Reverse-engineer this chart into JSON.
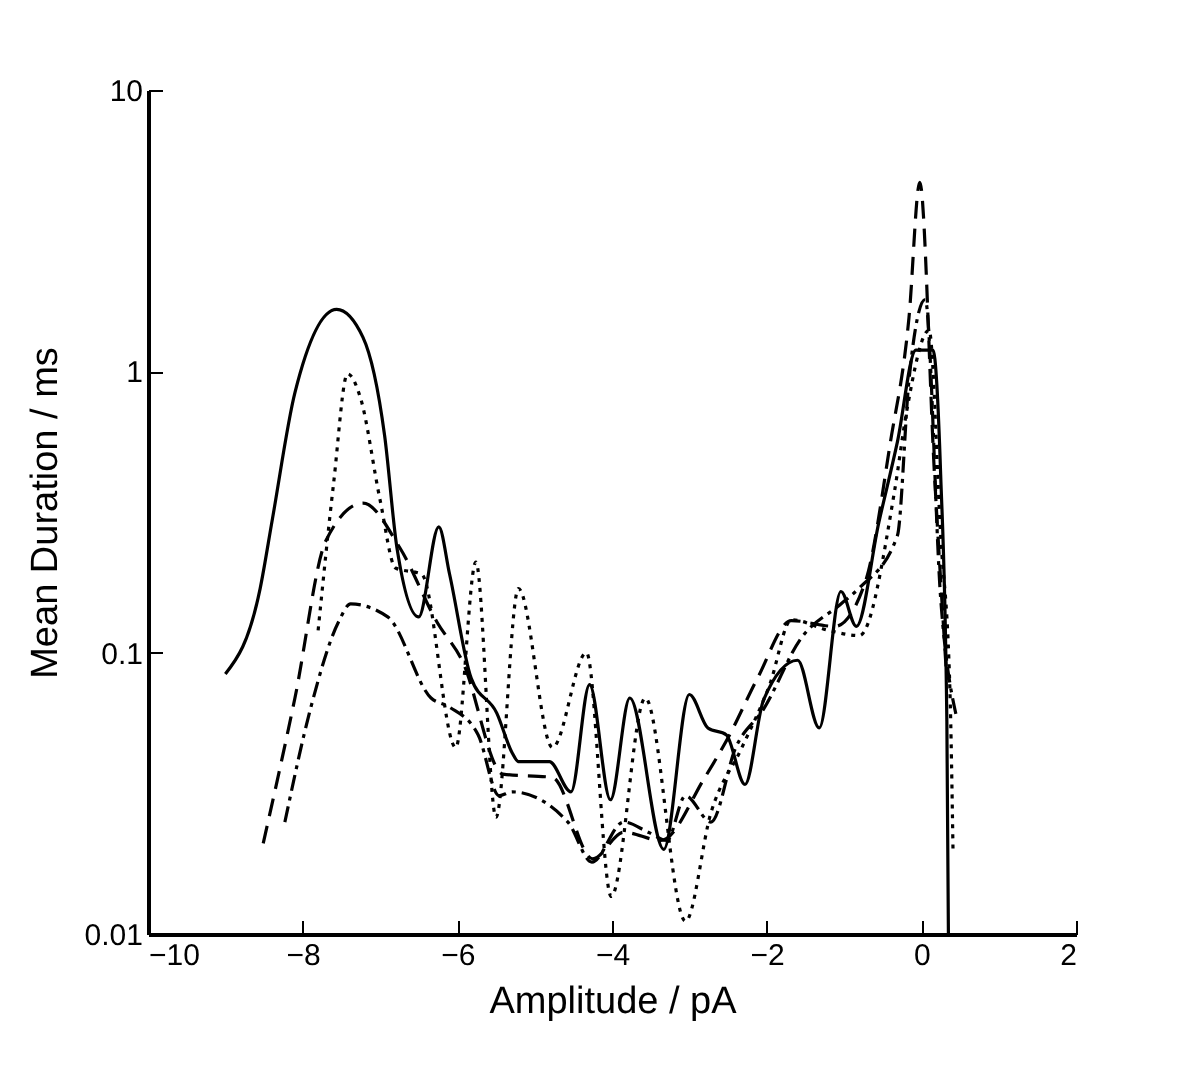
{
  "chart_data": {
    "type": "line",
    "xlabel": "Amplitude / pA",
    "ylabel": "Mean Duration / ms",
    "log": "y",
    "xlim": [
      -10,
      2
    ],
    "xticks": [
      -10,
      -8,
      -6,
      -4,
      -2,
      0,
      2
    ],
    "ylim": [
      0.01,
      10
    ],
    "yticks": [
      0.01,
      0.1,
      1,
      10
    ],
    "grid": false,
    "marker": "none",
    "series": [
      {
        "color": "#000000",
        "line_style": "solid",
        "x": [
          -9.0,
          -8.55,
          -8.39,
          -8.1,
          -7.56,
          -7.22,
          -6.94,
          -6.78,
          -6.5,
          -6.24,
          -6.1,
          -5.82,
          -5.49,
          -5.29,
          -5.21,
          -4.81,
          -4.53,
          -4.29,
          -4.02,
          -3.77,
          -3.33,
          -3.0,
          -2.76,
          -2.52,
          -2.28,
          -2.04,
          -1.6,
          -1.32,
          -1.04,
          -0.84,
          -0.55,
          -0.31,
          -0.07,
          0.15,
          0.25,
          0.33,
          0.35
        ],
        "values": [
          0.084,
          0.169,
          0.3,
          0.84,
          1.66,
          1.32,
          0.59,
          0.235,
          0.134,
          0.28,
          0.19,
          0.081,
          0.061,
          0.044,
          0.041,
          0.041,
          0.032,
          0.077,
          0.03,
          0.069,
          0.02,
          0.071,
          0.054,
          0.051,
          0.034,
          0.068,
          0.094,
          0.054,
          0.165,
          0.124,
          0.29,
          0.56,
          1.19,
          1.19,
          0.43,
          0.057,
          0.01
        ]
      },
      {
        "color": "#000000",
        "line_style": "dotted",
        "x": [
          -7.8,
          -7.6,
          -7.42,
          -7.25,
          -7.0,
          -6.8,
          -6.46,
          -6.02,
          -5.76,
          -5.5,
          -5.21,
          -4.77,
          -4.33,
          -4.01,
          -3.57,
          -3.05,
          -2.72,
          -2.32,
          -1.96,
          -1.68,
          -1.2,
          -0.8,
          -0.35,
          -0.19,
          0.1,
          0.25,
          0.37,
          0.41
        ],
        "values": [
          0.12,
          0.4,
          0.98,
          0.8,
          0.35,
          0.2,
          0.19,
          0.046,
          0.21,
          0.026,
          0.169,
          0.046,
          0.1,
          0.0136,
          0.069,
          0.0111,
          0.027,
          0.046,
          0.077,
          0.131,
          0.12,
          0.115,
          0.37,
          0.72,
          1.4,
          0.26,
          0.073,
          0.0195
        ]
      },
      {
        "color": "#000000",
        "line_style": "dashed",
        "x": [
          -8.51,
          -8.1,
          -7.7,
          -7.22,
          -6.74,
          -6.26,
          -5.94,
          -5.41,
          -4.77,
          -4.25,
          -3.85,
          -3.37,
          -2.8,
          -2.48,
          -2.12,
          -1.68,
          -1.12,
          -0.72,
          -0.4,
          -0.16,
          -0.02,
          0.17,
          0.33
        ],
        "values": [
          0.021,
          0.069,
          0.25,
          0.34,
          0.235,
          0.128,
          0.094,
          0.037,
          0.036,
          0.0185,
          0.023,
          0.0215,
          0.036,
          0.051,
          0.081,
          0.13,
          0.124,
          0.18,
          0.56,
          1.55,
          4.7,
          0.43,
          0.08
        ]
      },
      {
        "color": "#000000",
        "line_style": "dashdot",
        "x": [
          -8.23,
          -7.9,
          -7.54,
          -7.38,
          -6.9,
          -6.34,
          -6.1,
          -5.73,
          -5.46,
          -5.29,
          -4.57,
          -4.26,
          -3.85,
          -3.53,
          -3.29,
          -3.05,
          -2.72,
          -2.4,
          -2.04,
          -1.56,
          -1.04,
          -0.8,
          -0.31,
          -0.16,
          0.05,
          0.25,
          0.45
        ],
        "values": [
          0.025,
          0.063,
          0.128,
          0.149,
          0.134,
          0.069,
          0.064,
          0.051,
          0.031,
          0.032,
          0.025,
          0.018,
          0.025,
          0.023,
          0.0215,
          0.031,
          0.025,
          0.046,
          0.063,
          0.112,
          0.149,
          0.17,
          0.26,
          0.93,
          1.8,
          0.156,
          0.06
        ]
      }
    ]
  }
}
